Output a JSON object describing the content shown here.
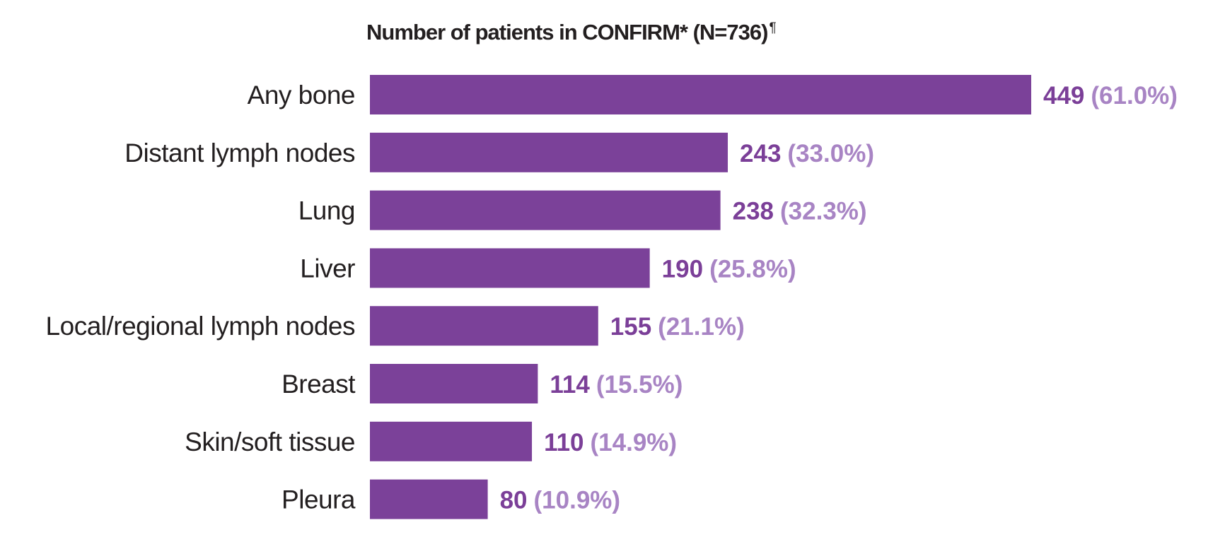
{
  "chart_data": {
    "type": "bar",
    "orientation": "horizontal",
    "title": "Number of patients in CONFIRM* (N=736)",
    "title_mark": "¶",
    "categories": [
      "Any bone",
      "Distant lymph nodes",
      "Lung",
      "Liver",
      "Local/regional lymph nodes",
      "Breast",
      "Skin/soft tissue",
      "Pleura"
    ],
    "values": [
      449,
      243,
      238,
      190,
      155,
      114,
      110,
      80
    ],
    "percent_labels": [
      "(61.0%)",
      "(33.0%)",
      "(32.3%)",
      "(25.8%)",
      "(21.1%)",
      "(15.5%)",
      "(14.9%)",
      "(10.9%)"
    ],
    "xlim": [
      0,
      449
    ],
    "grid": false,
    "legend": "none",
    "colors": {
      "bar": "#7b4199",
      "count_text": "#7b3f98",
      "percent_text": "#a884c4",
      "label_text": "#231f20"
    }
  }
}
